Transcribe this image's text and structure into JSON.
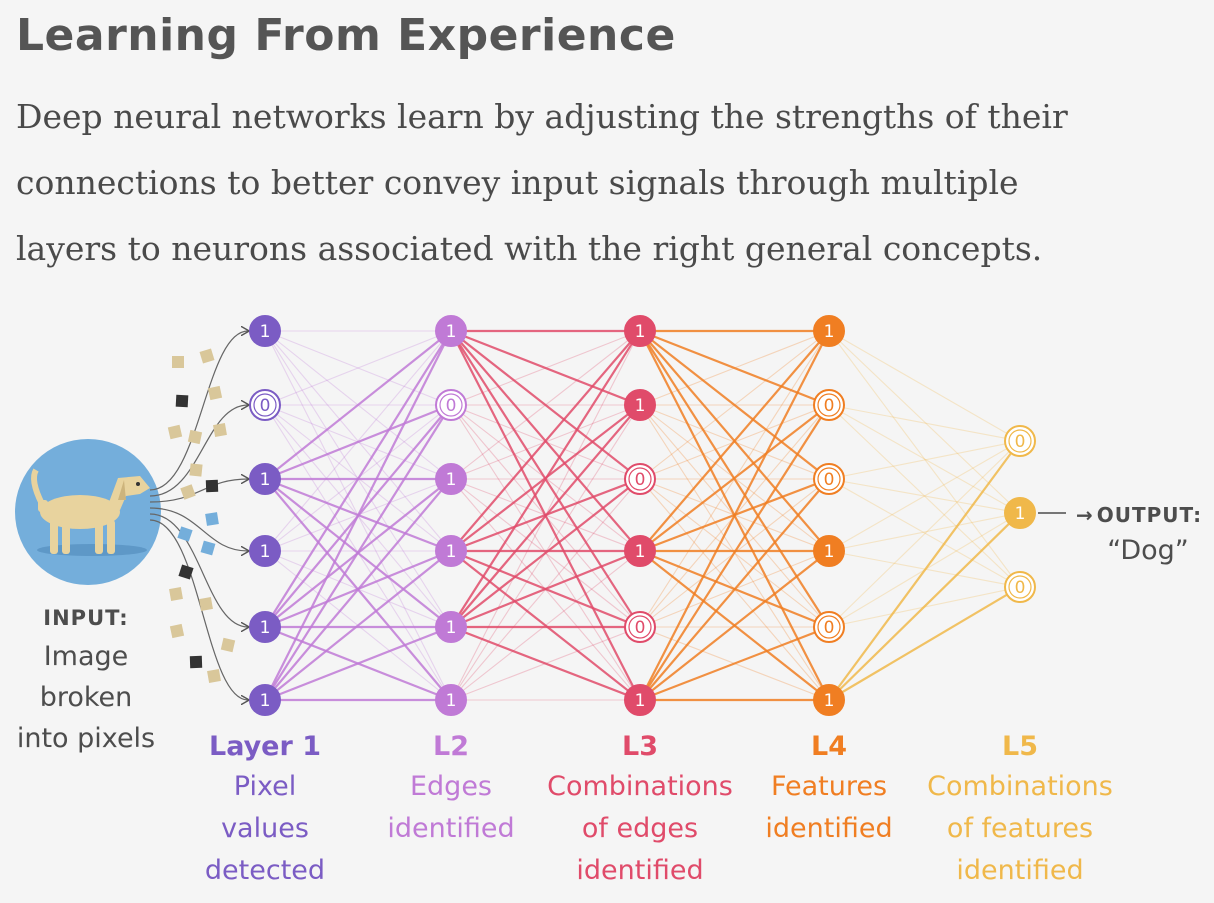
{
  "header": {
    "title": "Learning From Experience",
    "subtitle_lines": [
      "Deep neural networks learn by adjusting the strengths of their",
      "connections to better convey input signals through multiple",
      "layers to neurons associated with the right general concepts."
    ]
  },
  "input": {
    "caption": "INPUT:",
    "lines": [
      "Image",
      "broken",
      "into pixels"
    ]
  },
  "output": {
    "caption": "OUTPUT:",
    "value": "“Dog”"
  },
  "layers": [
    {
      "name": "Layer 1",
      "desc": [
        "Pixel",
        "values",
        "detected"
      ],
      "color": "#7b5cc4",
      "neurons": [
        1,
        0,
        1,
        1,
        1,
        1
      ]
    },
    {
      "name": "L2",
      "desc": [
        "Edges",
        "identified"
      ],
      "color": "#c07ad6",
      "neurons": [
        1,
        0,
        1,
        1,
        1,
        1
      ]
    },
    {
      "name": "L3",
      "desc": [
        "Combinations",
        "of edges",
        "identified"
      ],
      "color": "#e04b6a",
      "neurons": [
        1,
        1,
        0,
        1,
        0,
        1
      ]
    },
    {
      "name": "L4",
      "desc": [
        "Features",
        "identified"
      ],
      "color": "#f07e22",
      "neurons": [
        1,
        0,
        0,
        1,
        0,
        1
      ]
    },
    {
      "name": "L5",
      "desc": [
        "Combinations",
        "of features",
        "identified"
      ],
      "color": "#f0b84a",
      "neurons": [
        0,
        1,
        0
      ]
    }
  ],
  "colors": {
    "dog_circle": "#74aedb",
    "dog_body": "#e8d39e",
    "text": "#4d4d4d"
  },
  "icons": [
    "dog-image",
    "pixel-square",
    "arrow-right-icon"
  ]
}
